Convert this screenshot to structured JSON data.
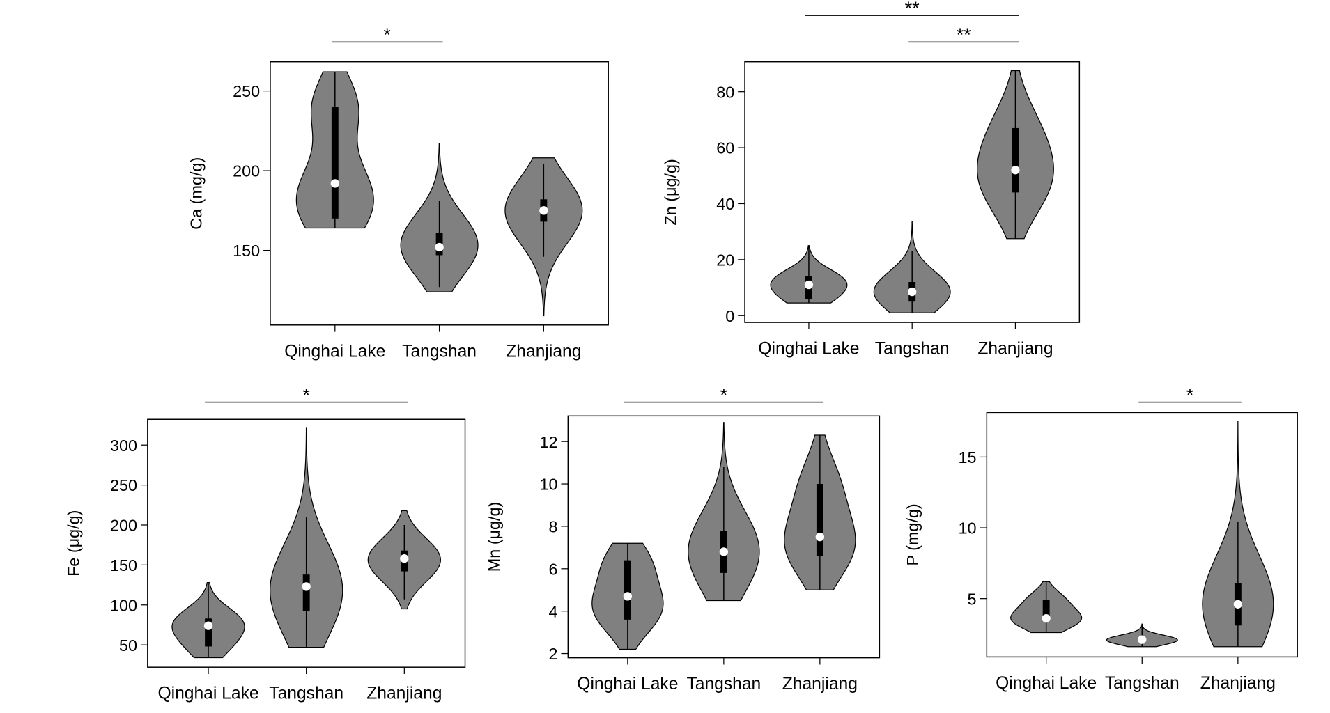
{
  "chart_data": [
    {
      "type": "violin",
      "ylabel": "Ca (mg/g)",
      "color": "#808080",
      "categories": [
        "Qinghai Lake",
        "Tangshan",
        "Zhanjiang"
      ],
      "ylim": [
        103.2,
        268.3
      ],
      "yticks": [
        150,
        200,
        250
      ],
      "groups": [
        {
          "min": 164,
          "max": 262,
          "whisker_low": 164,
          "whisker_high": 262,
          "q1": 170,
          "median": 192,
          "q3": 240
        },
        {
          "min": 124,
          "max": 217,
          "whisker_low": 127,
          "whisker_high": 181,
          "q1": 147,
          "median": 152,
          "q3": 161
        },
        {
          "min": 109,
          "max": 208,
          "whisker_low": 146,
          "whisker_high": 204,
          "q1": 168,
          "median": 175,
          "q3": 182
        }
      ],
      "significance": [
        {
          "from": 0,
          "to": 1,
          "label": "*"
        }
      ]
    },
    {
      "type": "violin",
      "ylabel": "Zn (μg/g)",
      "color": "#808080",
      "categories": [
        "Qinghai Lake",
        "Tangshan",
        "Zhanjiang"
      ],
      "ylim": [
        -2.45,
        90.7
      ],
      "yticks": [
        0,
        20,
        40,
        60,
        80
      ],
      "groups": [
        {
          "min": 4.5,
          "max": 25,
          "whisker_low": 4.5,
          "whisker_high": 25,
          "q1": 6,
          "median": 11,
          "q3": 14
        },
        {
          "min": 1,
          "max": 33.5,
          "whisker_low": 1,
          "whisker_high": 23,
          "q1": 5,
          "median": 8.5,
          "q3": 12
        },
        {
          "min": 27.5,
          "max": 87.5,
          "whisker_low": 27.5,
          "whisker_high": 87.5,
          "q1": 44,
          "median": 52,
          "q3": 67
        }
      ],
      "significance": [
        {
          "from": 0,
          "to": 2,
          "label": "**"
        },
        {
          "from": 1,
          "to": 2,
          "label": "**"
        }
      ]
    },
    {
      "type": "violin",
      "ylabel": "Fe (μg/g)",
      "color": "#808080",
      "categories": [
        "Qinghai Lake",
        "Tangshan",
        "Zhanjiang"
      ],
      "ylim": [
        22.1,
        332.2
      ],
      "yticks": [
        50,
        100,
        150,
        200,
        250,
        300
      ],
      "groups": [
        {
          "min": 34,
          "max": 128,
          "whisker_low": 34,
          "whisker_high": 128,
          "q1": 48,
          "median": 74,
          "q3": 83
        },
        {
          "min": 47,
          "max": 322,
          "whisker_low": 47,
          "whisker_high": 210,
          "q1": 92,
          "median": 123,
          "q3": 138
        },
        {
          "min": 95,
          "max": 218,
          "whisker_low": 107,
          "whisker_high": 200,
          "q1": 142,
          "median": 158,
          "q3": 168
        }
      ],
      "significance": [
        {
          "from": 0,
          "to": 2,
          "label": "*"
        }
      ]
    },
    {
      "type": "violin",
      "ylabel": "Mn (μg/g)",
      "color": "#808080",
      "categories": [
        "Qinghai Lake",
        "Tangshan",
        "Zhanjiang"
      ],
      "ylim": [
        1.8,
        13.21
      ],
      "yticks": [
        2,
        4,
        6,
        8,
        10,
        12
      ],
      "groups": [
        {
          "min": 2.2,
          "max": 7.2,
          "whisker_low": 2.2,
          "whisker_high": 7.2,
          "q1": 3.6,
          "median": 4.7,
          "q3": 6.4
        },
        {
          "min": 4.5,
          "max": 12.9,
          "whisker_low": 4.5,
          "whisker_high": 10.8,
          "q1": 5.8,
          "median": 6.8,
          "q3": 7.8
        },
        {
          "min": 5,
          "max": 12.3,
          "whisker_low": 5,
          "whisker_high": 12.3,
          "q1": 6.6,
          "median": 7.5,
          "q3": 10
        }
      ],
      "significance": [
        {
          "from": 0,
          "to": 2,
          "label": "*"
        }
      ]
    },
    {
      "type": "violin",
      "ylabel": "P (mg/g)",
      "color": "#808080",
      "categories": [
        "Qinghai Lake",
        "Tangshan",
        "Zhanjiang"
      ],
      "ylim": [
        0.88,
        18.15
      ],
      "yticks": [
        5,
        10,
        15
      ],
      "groups": [
        {
          "min": 2.6,
          "max": 6.2,
          "whisker_low": 2.6,
          "whisker_high": 6.2,
          "q1": 3.4,
          "median": 3.6,
          "q3": 4.9
        },
        {
          "min": 1.6,
          "max": 3.2,
          "whisker_low": 1.6,
          "whisker_high": 3.2,
          "q1": 1.9,
          "median": 2.1,
          "q3": 2.2
        },
        {
          "min": 1.6,
          "max": 17.5,
          "whisker_low": 1.6,
          "whisker_high": 10.4,
          "q1": 3.1,
          "median": 4.6,
          "q3": 6.1
        }
      ],
      "significance": [
        {
          "from": 1,
          "to": 2,
          "label": "*"
        }
      ]
    }
  ]
}
